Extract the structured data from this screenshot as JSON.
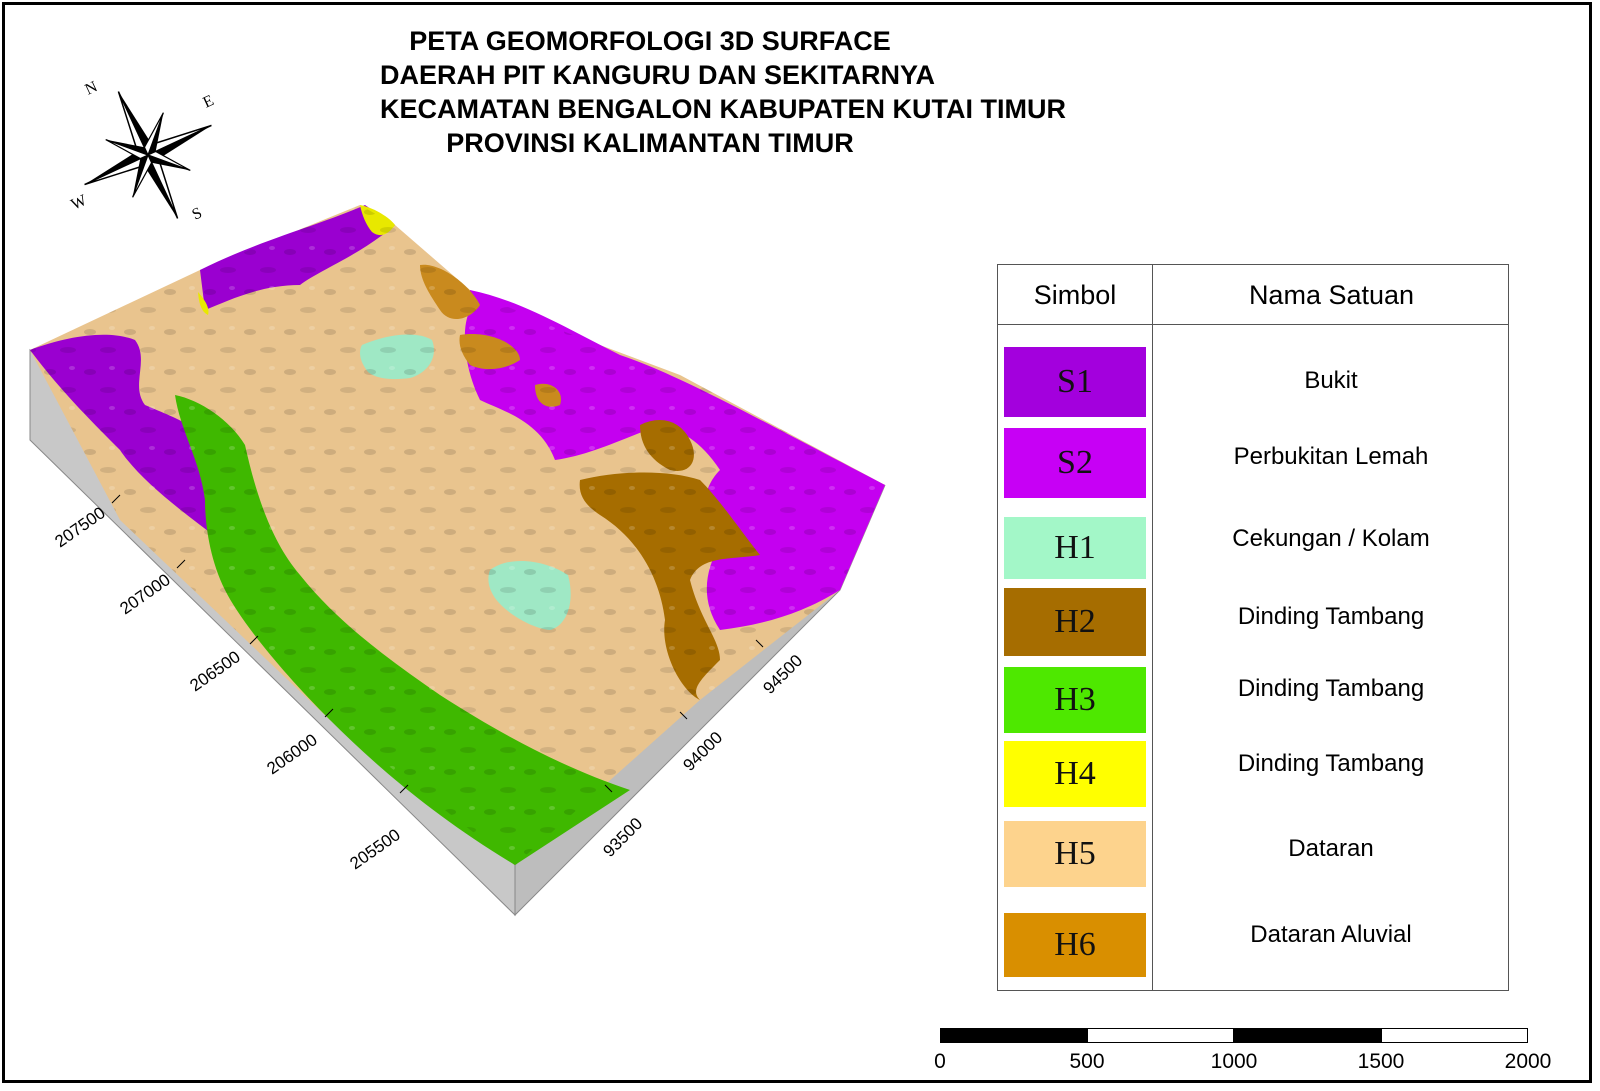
{
  "title": {
    "line1": "PETA GEOMORFOLOGI 3D SURFACE",
    "line2": "DAERAH PIT KANGURU DAN SEKITARNYA",
    "line3": "KECAMATAN BENGALON KABUPATEN KUTAI TIMUR",
    "line4": "PROVINSI KALIMANTAN TIMUR"
  },
  "compass": {
    "n": "N",
    "e": "E",
    "s": "S",
    "w": "W"
  },
  "legend": {
    "header_symbol": "Simbol",
    "header_name": "Nama Satuan",
    "items": [
      {
        "code": "S1",
        "name": "Bukit",
        "color": "#A300DD"
      },
      {
        "code": "S2",
        "name": "Perbukitan Lemah",
        "color": "#C700F5"
      },
      {
        "code": "H1",
        "name": "Cekungan / Kolam",
        "color": "#A3F7C8"
      },
      {
        "code": "H2",
        "name": "Dinding Tambang",
        "color": "#A66D00"
      },
      {
        "code": "H3",
        "name": "Dinding Tambang",
        "color": "#4EE800"
      },
      {
        "code": "H4",
        "name": "Dinding Tambang",
        "color": "#FFFF00"
      },
      {
        "code": "H5",
        "name": "Dataran",
        "color": "#FDD38D"
      },
      {
        "code": "H6",
        "name": "Dataran Aluvial",
        "color": "#D98F00"
      }
    ]
  },
  "axis_left": {
    "labels": [
      "207500",
      "207000",
      "206500",
      "206000",
      "205500"
    ]
  },
  "axis_right": {
    "labels": [
      "93500",
      "94000",
      "94500"
    ]
  },
  "scalebar": {
    "labels": [
      "0",
      "500",
      "1000",
      "1500",
      "2000"
    ]
  }
}
